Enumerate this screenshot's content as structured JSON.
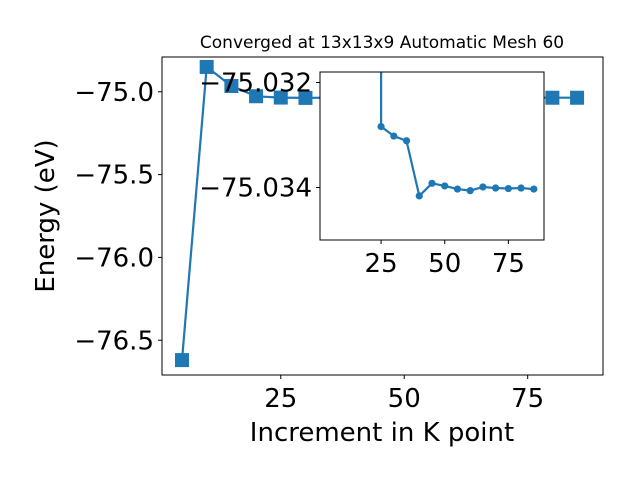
{
  "chart_data": [
    {
      "type": "line",
      "title": "Converged at 13x13x9 Automatic Mesh 60",
      "xlabel": "Increment in K point",
      "ylabel": "Energy (eV)",
      "xlim": [
        0.95,
        90.25
      ],
      "ylim": [
        -76.71,
        -74.79
      ],
      "xticks": [
        25,
        50,
        75
      ],
      "xtick_labels": [
        "25",
        "50",
        "75"
      ],
      "yticks": [
        -75.0,
        -75.5,
        -76.0,
        -76.5
      ],
      "ytick_labels": [
        "−75.0",
        "−75.5",
        "−76.0",
        "−76.5"
      ],
      "grid": false,
      "marker": "square",
      "color": "#1f77b4",
      "x": [
        5,
        10,
        15,
        20,
        25,
        30,
        35,
        40,
        45,
        50,
        55,
        60,
        65,
        70,
        75,
        80,
        85
      ],
      "y": [
        -76.62,
        -74.85,
        -74.965,
        -75.027,
        -75.035,
        -75.037,
        -75.036,
        -75.036,
        -75.036,
        -75.036,
        -75.036,
        -75.036,
        -75.036,
        -75.036,
        -75.036,
        -75.036,
        -75.036
      ]
    },
    {
      "type": "line",
      "title": "",
      "xlabel": "",
      "ylabel": "",
      "xlim": [
        1,
        89
      ],
      "ylim": [
        -75.035,
        -75.0318
      ],
      "xticks": [
        25,
        50,
        75
      ],
      "xtick_labels": [
        "25",
        "50",
        "75"
      ],
      "yticks": [
        -75.034,
        -75.032
      ],
      "ytick_labels": [
        "−75.034",
        "−75.032"
      ],
      "grid": false,
      "marker": "circle",
      "color": "#1f77b4",
      "x": [
        25,
        30,
        35,
        40,
        45,
        50,
        55,
        60,
        65,
        70,
        75,
        80,
        85
      ],
      "y": [
        -75.03284,
        -75.03302,
        -75.03311,
        -75.03416,
        -75.03392,
        -75.03397,
        -75.03403,
        -75.03406,
        -75.03399,
        -75.03401,
        -75.03402,
        -75.03401,
        -75.03403
      ]
    }
  ]
}
